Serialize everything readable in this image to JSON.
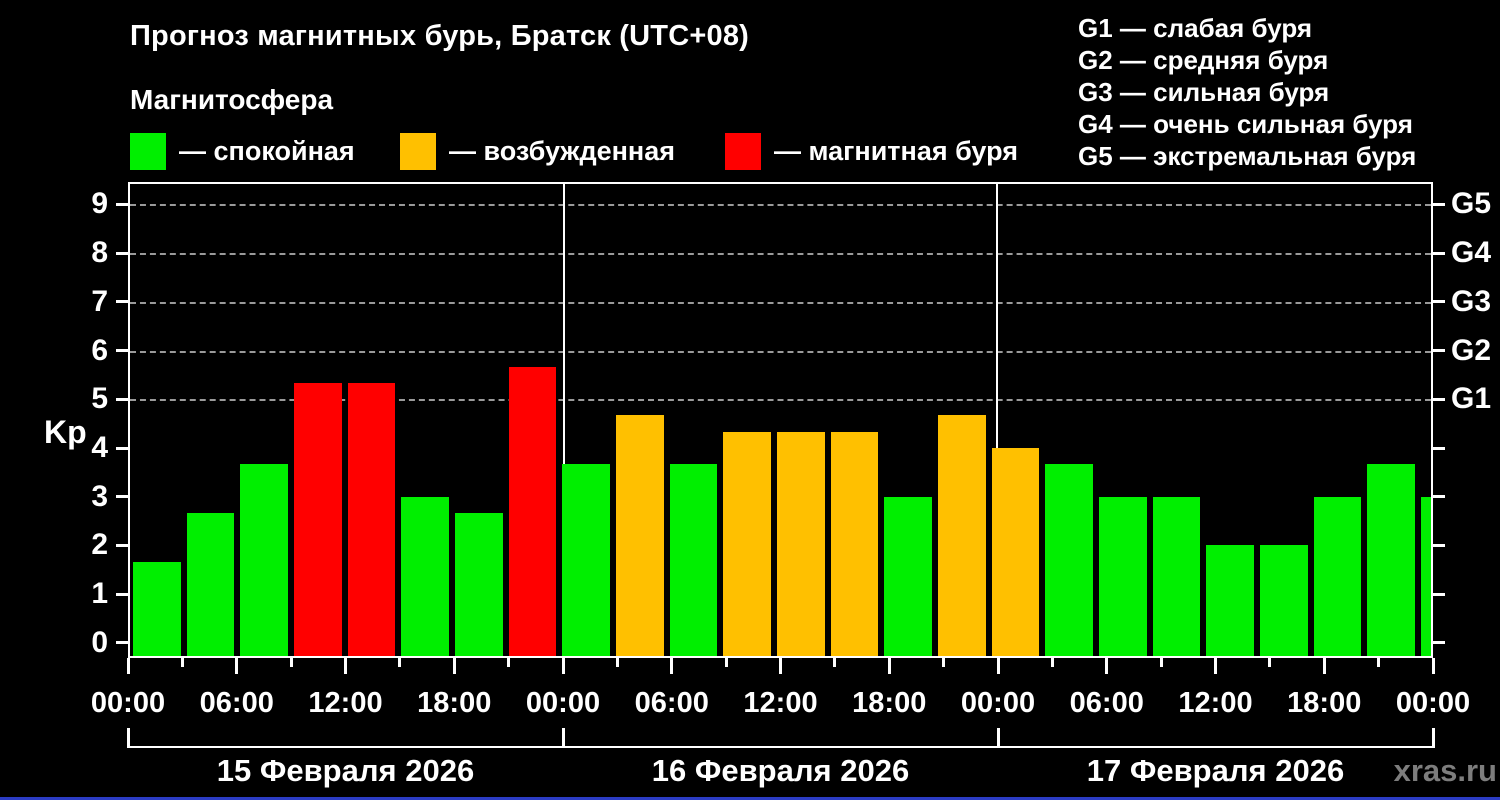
{
  "title": "Прогноз магнитных бурь, Братск (UTC+08)",
  "subtitle": "Магнитосфера",
  "legend": {
    "items": [
      {
        "label": "— спокойная",
        "color": "#00ef00"
      },
      {
        "label": "— возбужденная",
        "color": "#ffc000"
      },
      {
        "label": "— магнитная буря",
        "color": "#ff0000"
      }
    ]
  },
  "g_legend": [
    "G1 — слабая буря",
    "G2 — средняя буря",
    "G3 — сильная буря",
    "G4 — очень сильная буря",
    "G5 — экстремальная буря"
  ],
  "watermark": "xras.ru",
  "chart_data": {
    "type": "bar",
    "title": "Прогноз магнитных бурь, Братск (UTC+08)",
    "ylabel": "Kp",
    "ylim": [
      -0.27,
      9.42
    ],
    "y_ticks": [
      0,
      1,
      2,
      3,
      4,
      5,
      6,
      7,
      8,
      9
    ],
    "grid_levels": [
      5,
      6,
      7,
      8,
      9
    ],
    "right_axis_labels": [
      {
        "value": 5,
        "label": "G1"
      },
      {
        "value": 6,
        "label": "G2"
      },
      {
        "value": 7,
        "label": "G3"
      },
      {
        "value": 8,
        "label": "G4"
      },
      {
        "value": 9,
        "label": "G5"
      }
    ],
    "x_time_tick_labels": [
      "00:00",
      "06:00",
      "12:00",
      "18:00",
      "00:00",
      "06:00",
      "12:00",
      "18:00",
      "00:00",
      "06:00",
      "12:00",
      "18:00",
      "00:00"
    ],
    "hours_span": 72,
    "bar_interval_hours": 3,
    "days": [
      {
        "date": "15 Февраля 2026",
        "values": [
          1.67,
          2.67,
          3.67,
          5.33,
          5.33,
          3.0,
          2.67,
          5.67
        ]
      },
      {
        "date": "16 Февраля 2026",
        "values": [
          3.67,
          4.67,
          3.67,
          4.33,
          4.33,
          4.33,
          3.0,
          4.67
        ]
      },
      {
        "date": "17 Февраля 2026",
        "values": [
          4.0,
          3.67,
          3.0,
          3.0,
          2.0,
          2.0,
          3.0,
          3.67
        ]
      }
    ],
    "next_day_partial_value": 3.0,
    "thresholds": {
      "excited_min": 4,
      "storm_min": 5
    },
    "colors": {
      "quiet": "#00ef00",
      "excited": "#ffc000",
      "storm": "#ff0000"
    },
    "grid_color": "#9a9a9a",
    "legend_position": "top"
  }
}
